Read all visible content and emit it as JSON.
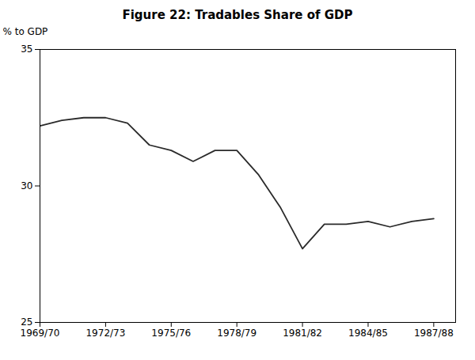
{
  "chart_data": {
    "type": "line",
    "title": "Figure 22: Tradables Share of GDP",
    "ylabel": "% to GDP",
    "x": [
      0,
      1,
      2,
      3,
      4,
      5,
      6,
      7,
      8,
      9,
      10,
      11,
      12,
      13,
      14,
      15,
      16,
      17,
      18
    ],
    "values": [
      32.2,
      32.4,
      32.5,
      32.5,
      32.3,
      31.5,
      31.3,
      30.9,
      31.3,
      31.3,
      30.4,
      29.2,
      27.7,
      28.6,
      28.6,
      28.7,
      28.5,
      28.7,
      28.8
    ],
    "color": "#2a2a2a",
    "xlim": [
      0,
      19
    ],
    "xticks": [
      {
        "value": 0,
        "label": "1969/70"
      },
      {
        "value": 3,
        "label": "1972/73"
      },
      {
        "value": 6,
        "label": "1975/76"
      },
      {
        "value": 9,
        "label": "1978/79"
      },
      {
        "value": 12,
        "label": "1981/82"
      },
      {
        "value": 15,
        "label": "1984/85"
      },
      {
        "value": 18,
        "label": "1987/88"
      }
    ],
    "ylim": [
      25,
      35
    ],
    "yticks": [
      25,
      30,
      35
    ],
    "grid": false
  }
}
